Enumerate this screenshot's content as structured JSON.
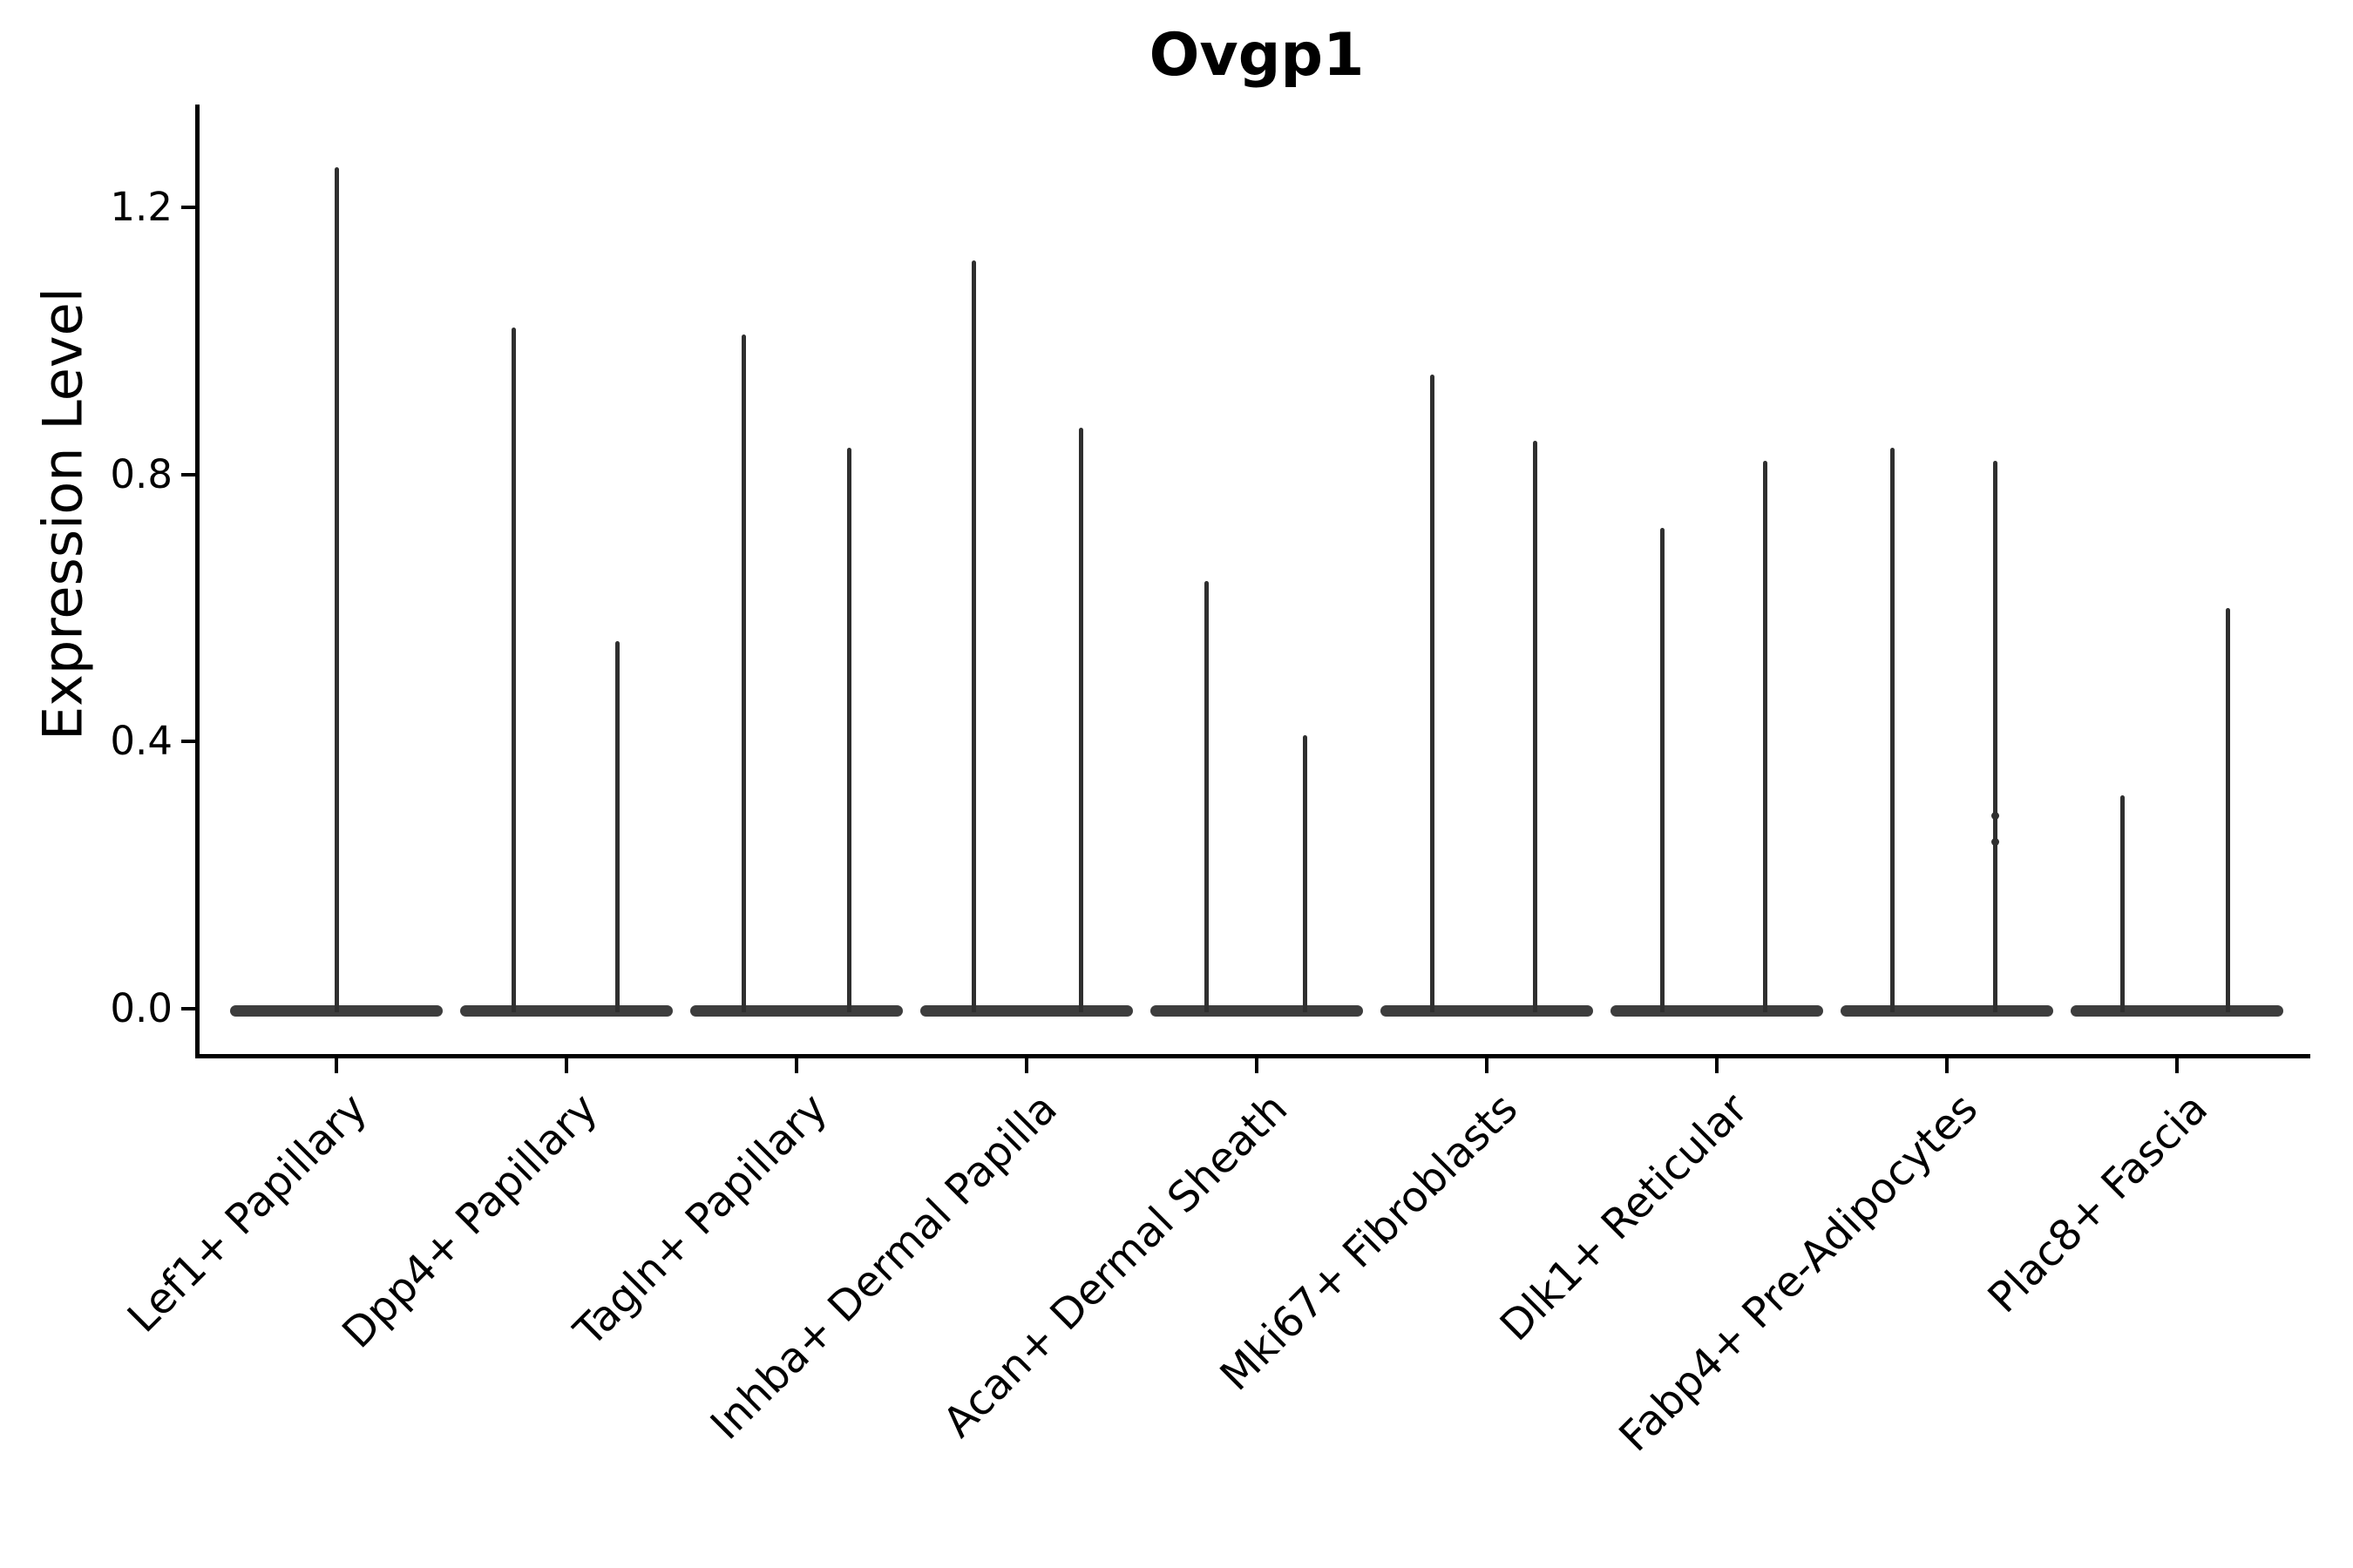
{
  "chart_data": {
    "type": "violin",
    "title": "Ovgp1",
    "xlabel": "",
    "ylabel": "Expression Level",
    "ylim": [
      -0.07,
      1.35
    ],
    "grid": false,
    "legend": null,
    "yticks": [
      {
        "value": 0.0,
        "label": "0.0"
      },
      {
        "value": 0.4,
        "label": "0.4"
      },
      {
        "value": 0.8,
        "label": "0.8"
      },
      {
        "value": 1.2,
        "label": "1.2"
      }
    ],
    "categories": [
      "Lef1+ Papillary",
      "Dpp4+ Papillary",
      "Tagln+ Papillary",
      "Inhba+ Dermal Papilla",
      "Acan+ Dermal Sheath",
      "Mki67+ Fibroblasts",
      "Dlk1+ Reticular",
      "Fabp4+ Pre-Adipocytes",
      "Plac8+ Fascia"
    ],
    "violins": [
      {
        "category": "Lef1+ Papillary",
        "spikes": [
          {
            "offset": 0.0,
            "max": 1.26
          }
        ]
      },
      {
        "category": "Dpp4+ Papillary",
        "spikes": [
          {
            "offset": -0.231,
            "max": 1.02
          },
          {
            "offset": 0.22,
            "max": 0.55
          }
        ]
      },
      {
        "category": "Tagln+ Papillary",
        "spikes": [
          {
            "offset": -0.231,
            "max": 1.01
          },
          {
            "offset": 0.227,
            "max": 0.84
          }
        ]
      },
      {
        "category": "Inhba+ Dermal Papilla",
        "spikes": [
          {
            "offset": -0.231,
            "max": 1.12
          },
          {
            "offset": 0.235,
            "max": 0.87
          }
        ]
      },
      {
        "category": "Acan+ Dermal Sheath",
        "spikes": [
          {
            "offset": -0.22,
            "max": 0.64
          },
          {
            "offset": 0.21,
            "max": 0.41
          }
        ]
      },
      {
        "category": "Mki67+ Fibroblasts",
        "spikes": [
          {
            "offset": -0.239,
            "max": 0.95
          },
          {
            "offset": 0.21,
            "max": 0.85
          }
        ]
      },
      {
        "category": "Dlk1+ Reticular",
        "spikes": [
          {
            "offset": -0.239,
            "max": 0.72
          },
          {
            "offset": 0.21,
            "max": 0.82
          }
        ]
      },
      {
        "category": "Fabp4+ Pre-Adipocytes",
        "spikes": [
          {
            "offset": -0.239,
            "max": 0.84
          },
          {
            "offset": 0.21,
            "max": 0.82,
            "nubs": [
              0.29,
              0.25
            ]
          }
        ]
      },
      {
        "category": "Plac8+ Fascia",
        "spikes": [
          {
            "offset": -0.239,
            "max": 0.32
          },
          {
            "offset": 0.22,
            "max": 0.6
          }
        ]
      }
    ],
    "base_halfwidth_frac": 0.462,
    "colors": {
      "spike": "#2f2f2f",
      "base_fill": "#3d3d3d",
      "axis": "#000000",
      "text": "#000000",
      "background": "#ffffff"
    }
  }
}
